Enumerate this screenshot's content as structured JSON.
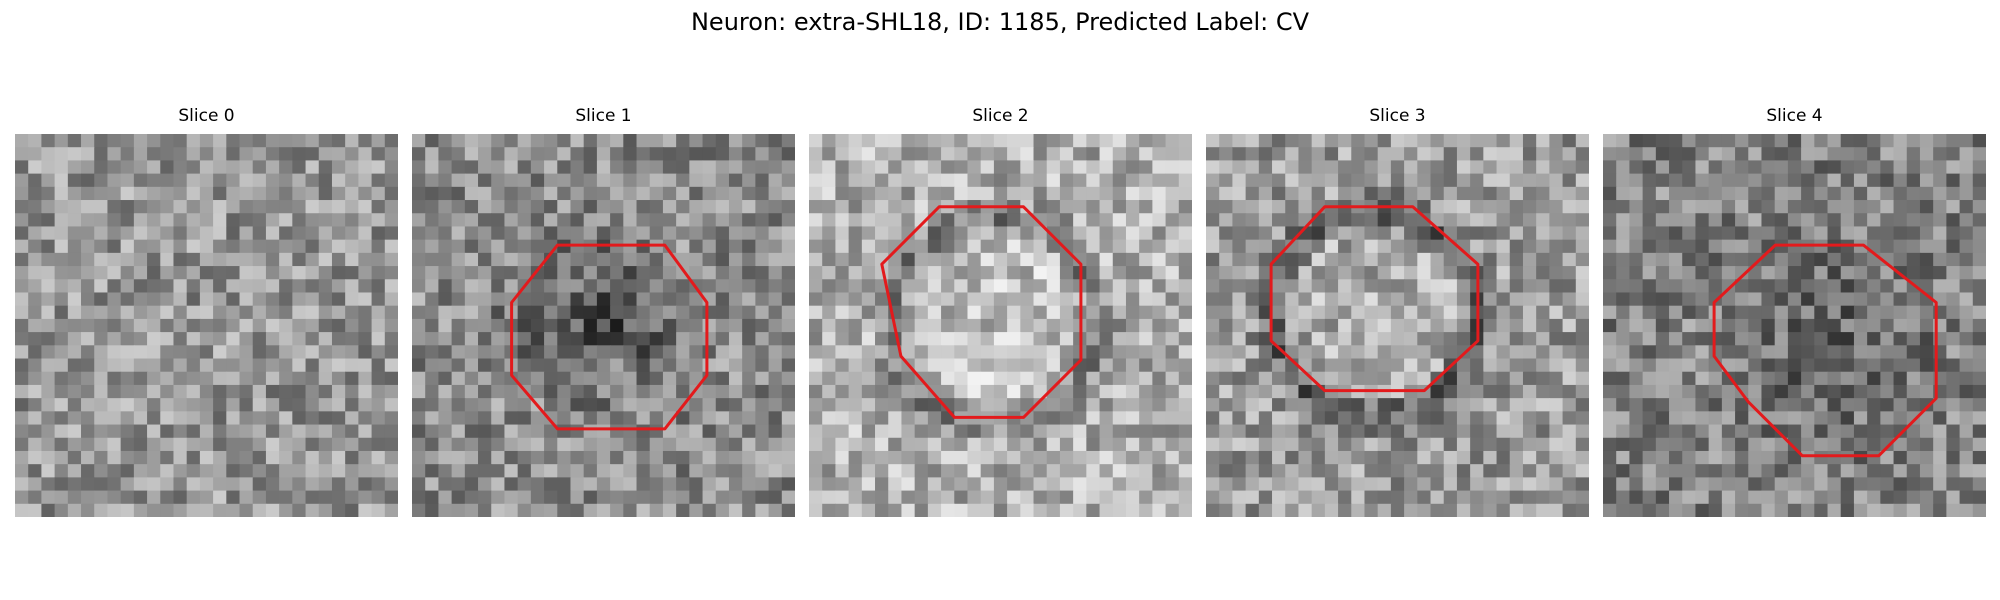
{
  "figure": {
    "title": "Neuron: extra-SHL18, ID: 1185, Predicted Label: CV"
  },
  "colors": {
    "outline": "#e31a1c",
    "background": "#ffffff"
  },
  "panels": [
    {
      "title": "Slice 0",
      "outline": "none",
      "base": 150
    },
    {
      "title": "Slice 1",
      "outline": "octagon",
      "base": 140
    },
    {
      "title": "Slice 2",
      "outline": "octagon",
      "base": 175
    },
    {
      "title": "Slice 3",
      "outline": "octagon",
      "base": 155
    },
    {
      "title": "Slice 4",
      "outline": "octagon",
      "base": 130
    }
  ]
}
